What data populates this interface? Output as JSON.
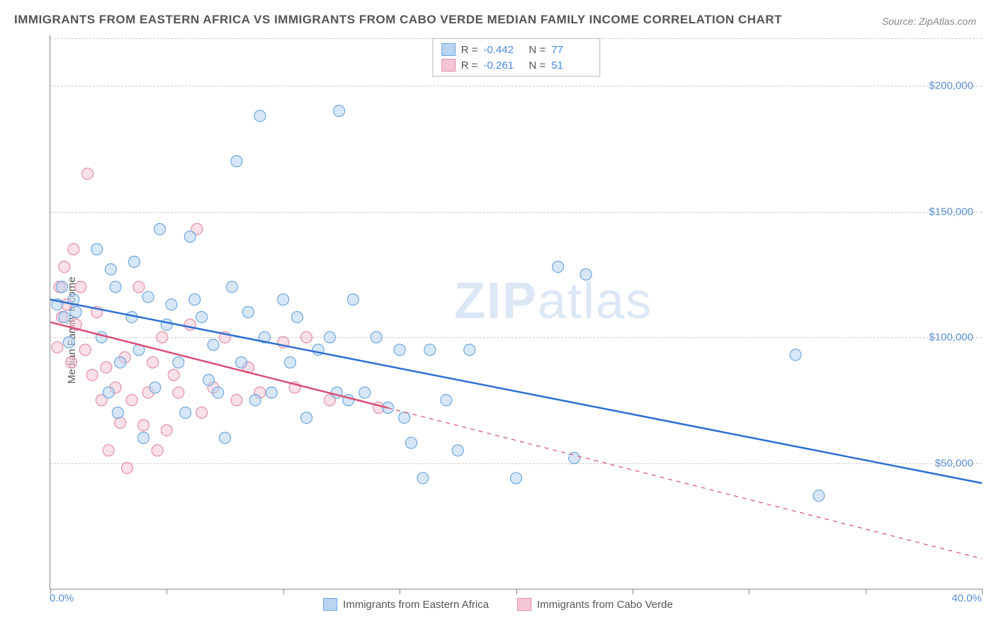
{
  "title": "IMMIGRANTS FROM EASTERN AFRICA VS IMMIGRANTS FROM CABO VERDE MEDIAN FAMILY INCOME CORRELATION CHART",
  "source": "Source: ZipAtlas.com",
  "watermark_a": "ZIP",
  "watermark_b": "atlas",
  "y_axis_label": "Median Family Income",
  "x_min_label": "0.0%",
  "x_max_label": "40.0%",
  "xlim": [
    0,
    40
  ],
  "ylim": [
    0,
    220000
  ],
  "y_gridlines": [
    50000,
    100000,
    150000,
    200000
  ],
  "y_tick_labels": [
    "$50,000",
    "$100,000",
    "$150,000",
    "$200,000"
  ],
  "x_ticks": [
    0,
    5,
    10,
    15,
    20,
    25,
    30,
    35,
    40
  ],
  "background_color": "#ffffff",
  "grid_color": "#cccccc",
  "series": {
    "eastern_africa": {
      "label": "Immigrants from Eastern Africa",
      "fill": "#b8d4f0",
      "stroke": "#6fa8e0",
      "line_color": "#2e6fd1",
      "R_label": "R =",
      "R": "-0.442",
      "N_label": "N =",
      "N": "77",
      "trend": {
        "x1": 0,
        "y1": 115000,
        "x2": 40,
        "y2": 42000,
        "dashed_from_x": null
      },
      "points": [
        [
          0.3,
          113000
        ],
        [
          0.5,
          120000
        ],
        [
          0.6,
          108000
        ],
        [
          0.8,
          98000
        ],
        [
          1.0,
          115000
        ],
        [
          1.1,
          110000
        ],
        [
          2.0,
          135000
        ],
        [
          2.2,
          100000
        ],
        [
          2.5,
          78000
        ],
        [
          2.6,
          127000
        ],
        [
          2.8,
          120000
        ],
        [
          2.9,
          70000
        ],
        [
          3.0,
          90000
        ],
        [
          3.5,
          108000
        ],
        [
          3.6,
          130000
        ],
        [
          3.8,
          95000
        ],
        [
          4.0,
          60000
        ],
        [
          4.2,
          116000
        ],
        [
          4.5,
          80000
        ],
        [
          4.7,
          143000
        ],
        [
          5.0,
          105000
        ],
        [
          5.2,
          113000
        ],
        [
          5.5,
          90000
        ],
        [
          5.8,
          70000
        ],
        [
          6.0,
          140000
        ],
        [
          6.2,
          115000
        ],
        [
          6.5,
          108000
        ],
        [
          6.8,
          83000
        ],
        [
          7.0,
          97000
        ],
        [
          7.2,
          78000
        ],
        [
          7.5,
          60000
        ],
        [
          7.8,
          120000
        ],
        [
          8.0,
          170000
        ],
        [
          8.2,
          90000
        ],
        [
          8.5,
          110000
        ],
        [
          8.8,
          75000
        ],
        [
          9.0,
          188000
        ],
        [
          9.2,
          100000
        ],
        [
          9.5,
          78000
        ],
        [
          10.0,
          115000
        ],
        [
          10.3,
          90000
        ],
        [
          10.6,
          108000
        ],
        [
          11.0,
          68000
        ],
        [
          11.5,
          95000
        ],
        [
          12.0,
          100000
        ],
        [
          12.3,
          78000
        ],
        [
          12.4,
          190000
        ],
        [
          12.8,
          75000
        ],
        [
          13.0,
          115000
        ],
        [
          13.5,
          78000
        ],
        [
          14.0,
          100000
        ],
        [
          14.5,
          72000
        ],
        [
          15.0,
          95000
        ],
        [
          15.2,
          68000
        ],
        [
          15.5,
          58000
        ],
        [
          16.0,
          44000
        ],
        [
          16.3,
          95000
        ],
        [
          17.0,
          75000
        ],
        [
          17.5,
          55000
        ],
        [
          18.0,
          95000
        ],
        [
          20.0,
          44000
        ],
        [
          21.8,
          128000
        ],
        [
          22.5,
          52000
        ],
        [
          23.0,
          125000
        ],
        [
          32.0,
          93000
        ],
        [
          33.0,
          37000
        ]
      ]
    },
    "cabo_verde": {
      "label": "Immigrants from Cabo Verde",
      "fill": "#f5c6d3",
      "stroke": "#e48fa8",
      "line_color": "#d94f76",
      "R_label": "R =",
      "R": "-0.261",
      "N_label": "N =",
      "N": "51",
      "trend": {
        "x1": 0,
        "y1": 106000,
        "x2": 40,
        "y2": 12000,
        "dashed_from_x": 14.5
      },
      "points": [
        [
          0.3,
          96000
        ],
        [
          0.4,
          120000
        ],
        [
          0.5,
          108000
        ],
        [
          0.6,
          128000
        ],
        [
          0.7,
          113000
        ],
        [
          0.9,
          90000
        ],
        [
          1.0,
          135000
        ],
        [
          1.1,
          105000
        ],
        [
          1.3,
          120000
        ],
        [
          1.5,
          95000
        ],
        [
          1.6,
          165000
        ],
        [
          1.8,
          85000
        ],
        [
          2.0,
          110000
        ],
        [
          2.2,
          75000
        ],
        [
          2.4,
          88000
        ],
        [
          2.5,
          55000
        ],
        [
          2.8,
          80000
        ],
        [
          3.0,
          66000
        ],
        [
          3.2,
          92000
        ],
        [
          3.3,
          48000
        ],
        [
          3.5,
          75000
        ],
        [
          3.8,
          120000
        ],
        [
          4.0,
          65000
        ],
        [
          4.2,
          78000
        ],
        [
          4.4,
          90000
        ],
        [
          4.6,
          55000
        ],
        [
          4.8,
          100000
        ],
        [
          5.0,
          63000
        ],
        [
          5.3,
          85000
        ],
        [
          5.5,
          78000
        ],
        [
          6.0,
          105000
        ],
        [
          6.3,
          143000
        ],
        [
          6.5,
          70000
        ],
        [
          7.0,
          80000
        ],
        [
          7.5,
          100000
        ],
        [
          8.0,
          75000
        ],
        [
          8.5,
          88000
        ],
        [
          9.0,
          78000
        ],
        [
          10.0,
          98000
        ],
        [
          10.5,
          80000
        ],
        [
          11.0,
          100000
        ],
        [
          12.0,
          75000
        ],
        [
          14.1,
          72000
        ]
      ]
    }
  },
  "marker_radius": 8,
  "marker_opacity": 0.55,
  "line_width": 2.5
}
